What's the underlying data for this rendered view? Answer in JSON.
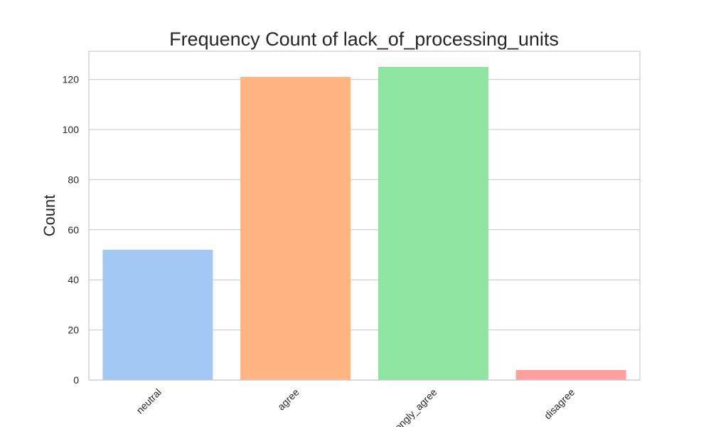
{
  "chart_data": {
    "type": "bar",
    "title": "Frequency Count of lack_of_processing_units",
    "xlabel": "",
    "ylabel": "Count",
    "categories": [
      "neutral",
      "agree",
      "strongly_agree",
      "disagree"
    ],
    "values": [
      52,
      121,
      125,
      4
    ],
    "colors": [
      "#a1c9f4",
      "#ffb482",
      "#8de5a1",
      "#ff9f9b"
    ],
    "ylim": [
      0,
      131.25
    ],
    "yticks": [
      0,
      20,
      40,
      60,
      80,
      100,
      120
    ],
    "grid": true,
    "gridColor": "#d0d0d0",
    "spineColor": "#cccccc",
    "xtick_rotation": -45
  }
}
